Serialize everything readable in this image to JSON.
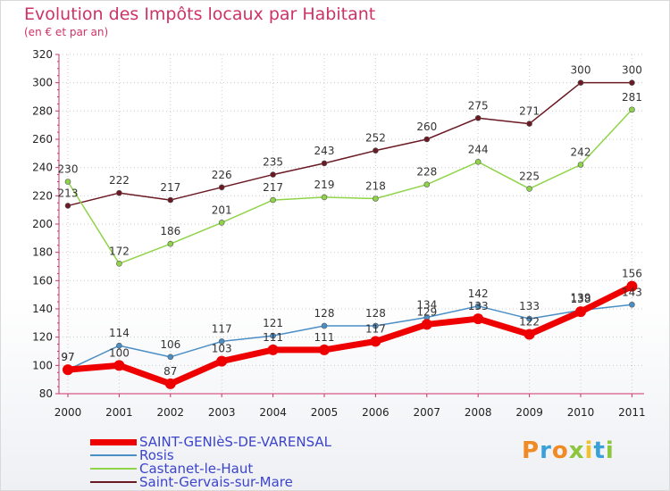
{
  "header": {
    "title": "Evolution des Impôts locaux par Habitant",
    "subtitle": "(en € et par an)"
  },
  "chart_data": {
    "type": "line",
    "title": "Evolution des Impôts locaux par Habitant",
    "subtitle": "(en € et par an)",
    "xlabel": "",
    "ylabel": "",
    "categories": [
      "2000",
      "2001",
      "2002",
      "2003",
      "2004",
      "2005",
      "2006",
      "2007",
      "2008",
      "2009",
      "2010",
      "2011"
    ],
    "ylim": [
      80,
      320
    ],
    "yticks": [
      80,
      100,
      120,
      140,
      160,
      180,
      200,
      220,
      240,
      260,
      280,
      300,
      320
    ],
    "grid": true,
    "legend_position": "bottom-left",
    "series": [
      {
        "name": "Saint-Gervais-sur-Mare",
        "color": "#6b1a24",
        "values": [
          213,
          222,
          217,
          226,
          235,
          243,
          252,
          260,
          275,
          271,
          300,
          300
        ]
      },
      {
        "name": "Castanet-le-Haut",
        "color": "#8fd448",
        "values": [
          230,
          172,
          186,
          201,
          217,
          219,
          218,
          228,
          244,
          225,
          242,
          281
        ]
      },
      {
        "name": "Rosis",
        "color": "#4a8ec6",
        "values": [
          97,
          114,
          106,
          117,
          121,
          128,
          128,
          134,
          142,
          133,
          139,
          143
        ]
      },
      {
        "name": "SAINT-GENIèS-DE-VARENSAL",
        "color": "#ee0000",
        "values": [
          97,
          100,
          87,
          103,
          111,
          111,
          117,
          129,
          133,
          122,
          138,
          156
        ]
      }
    ]
  },
  "legend": [
    {
      "name": "SAINT-GENIèS-DE-VARENSAL",
      "color": "#ee0000"
    },
    {
      "name": "Rosis",
      "color": "#4a8ec6"
    },
    {
      "name": "Castanet-le-Haut",
      "color": "#8fd448"
    },
    {
      "name": "Saint-Gervais-sur-Mare",
      "color": "#6b1a24"
    }
  ],
  "logo": {
    "text": "Proxiti"
  }
}
